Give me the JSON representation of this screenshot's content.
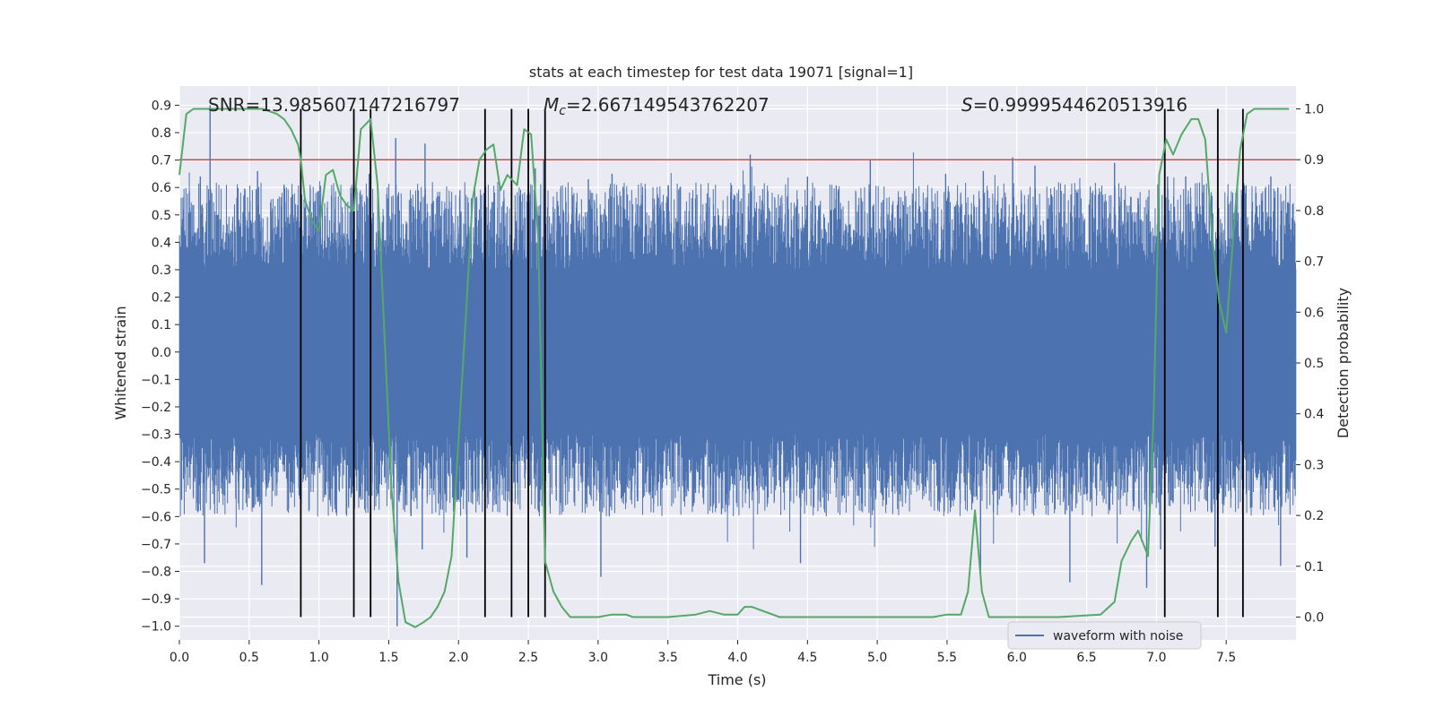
{
  "chart_data": {
    "type": "line",
    "title": "stats at each timestep for test data 19071 [signal=1]",
    "xlabel": "Time (s)",
    "ylabel": "Whitened strain",
    "y2label": "Detection probability",
    "xlim": [
      0.0,
      8.0
    ],
    "ylim": [
      -1.05,
      0.97
    ],
    "y2lim": [
      -0.045,
      1.045
    ],
    "x_ticks": [
      "0.0",
      "0.5",
      "1.0",
      "1.5",
      "2.0",
      "2.5",
      "3.0",
      "3.5",
      "4.0",
      "4.5",
      "5.0",
      "5.5",
      "6.0",
      "6.5",
      "7.0",
      "7.5"
    ],
    "y_ticks": [
      "0.9",
      "0.8",
      "0.7",
      "0.6",
      "0.5",
      "0.4",
      "0.3",
      "0.2",
      "0.1",
      "0.0",
      "−0.1",
      "−0.2",
      "−0.3",
      "−0.4",
      "−0.5",
      "−0.6",
      "−0.7",
      "−0.8",
      "−0.9",
      "−1.0"
    ],
    "y2_ticks": [
      "1.0",
      "0.9",
      "0.8",
      "0.7",
      "0.6",
      "0.5",
      "0.4",
      "0.3",
      "0.2",
      "0.1",
      "0.0"
    ],
    "grid": true,
    "legend": {
      "position": "lower-right",
      "entries": [
        "waveform with noise"
      ]
    },
    "annotations": {
      "snr": "SNR=13.985607147216797",
      "mc_symbol": "M",
      "mc_sub": "c",
      "mc_value": "=2.667149543762207",
      "s_symbol": "S",
      "s_value": "=0.9999544620513916"
    },
    "threshold": {
      "value": 0.9,
      "axis": "y2",
      "color": "#c44e52"
    },
    "vlines": [
      0.87,
      1.25,
      1.37,
      2.19,
      2.38,
      2.5,
      2.62,
      7.06,
      7.44,
      7.62
    ],
    "series": [
      {
        "name": "waveform with noise",
        "axis": "y",
        "color": "#4c72b0",
        "description": "dense noisy whitened strain, core about ±0.32, peaks to about +0.9 and -1.0",
        "peaks": [
          [
            0.22,
            0.9
          ],
          [
            0.15,
            0.64
          ],
          [
            0.56,
            0.66
          ],
          [
            0.75,
            0.61
          ],
          [
            1.09,
            0.57
          ],
          [
            1.36,
            0.65
          ],
          [
            1.76,
            0.76
          ],
          [
            1.55,
            0.78
          ],
          [
            2.01,
            0.59
          ],
          [
            2.55,
            0.67
          ],
          [
            2.61,
            0.7
          ],
          [
            2.93,
            0.63
          ],
          [
            3.1,
            0.65
          ],
          [
            3.5,
            0.56
          ],
          [
            3.98,
            0.57
          ],
          [
            4.09,
            0.72
          ],
          [
            4.5,
            0.64
          ],
          [
            4.95,
            0.7
          ],
          [
            5.49,
            0.65
          ],
          [
            5.76,
            0.66
          ],
          [
            5.97,
            0.71
          ],
          [
            6.13,
            0.68
          ],
          [
            6.7,
            0.69
          ],
          [
            7.08,
            0.64
          ],
          [
            7.21,
            0.64
          ],
          [
            7.34,
            0.61
          ],
          [
            7.57,
            0.58
          ],
          [
            7.82,
            0.64
          ],
          [
            7.87,
            0.6
          ]
        ],
        "troughs": [
          [
            0.18,
            -0.77
          ],
          [
            0.59,
            -0.85
          ],
          [
            1.56,
            -1.0
          ],
          [
            1.74,
            -0.72
          ],
          [
            2.06,
            -0.75
          ],
          [
            3.02,
            -0.82
          ],
          [
            4.45,
            -0.77
          ],
          [
            5.74,
            -0.82
          ],
          [
            6.38,
            -0.84
          ],
          [
            6.93,
            -0.86
          ],
          [
            7.03,
            -0.72
          ],
          [
            7.42,
            -0.71
          ],
          [
            7.89,
            -0.78
          ]
        ]
      },
      {
        "name": "",
        "axis": "y2",
        "color": "#55a868",
        "x": [
          0.0,
          0.05,
          0.1,
          0.2,
          0.3,
          0.4,
          0.5,
          0.6,
          0.7,
          0.75,
          0.8,
          0.85,
          0.87,
          0.9,
          0.95,
          1.0,
          1.05,
          1.1,
          1.15,
          1.2,
          1.25,
          1.3,
          1.37,
          1.42,
          1.47,
          1.52,
          1.57,
          1.62,
          1.69,
          1.75,
          1.8,
          1.85,
          1.9,
          1.95,
          2.0,
          2.05,
          2.1,
          2.15,
          2.2,
          2.25,
          2.3,
          2.35,
          2.42,
          2.47,
          2.52,
          2.57,
          2.62,
          2.68,
          2.74,
          2.8,
          2.85,
          2.9,
          2.95,
          3.0,
          3.1,
          3.2,
          3.25,
          3.3,
          3.5,
          3.7,
          3.8,
          3.9,
          4.0,
          4.05,
          4.1,
          4.3,
          4.5,
          4.8,
          5.1,
          5.3,
          5.4,
          5.5,
          5.6,
          5.65,
          5.7,
          5.75,
          5.8,
          5.86,
          5.9,
          6.0,
          6.1,
          6.3,
          6.6,
          6.7,
          6.75,
          6.82,
          6.87,
          6.94,
          6.98,
          7.02,
          7.07,
          7.12,
          7.18,
          7.25,
          7.3,
          7.35,
          7.4,
          7.45,
          7.5,
          7.55,
          7.6,
          7.65,
          7.7,
          7.75,
          7.8,
          7.85,
          7.95
        ],
        "y": [
          0.87,
          0.99,
          1.0,
          1.0,
          1.0,
          1.0,
          1.0,
          1.0,
          0.99,
          0.98,
          0.96,
          0.93,
          0.9,
          0.82,
          0.78,
          0.76,
          0.87,
          0.88,
          0.83,
          0.81,
          0.8,
          0.96,
          0.98,
          0.85,
          0.55,
          0.25,
          0.07,
          -0.01,
          -0.02,
          -0.01,
          0.0,
          0.02,
          0.05,
          0.12,
          0.35,
          0.58,
          0.82,
          0.9,
          0.92,
          0.93,
          0.84,
          0.87,
          0.85,
          0.96,
          0.95,
          0.75,
          0.11,
          0.05,
          0.02,
          0.0,
          0.0,
          0.0,
          0.0,
          0.0,
          0.005,
          0.005,
          0.0,
          0.0,
          0.0,
          0.005,
          0.012,
          0.005,
          0.005,
          0.02,
          0.02,
          0.0,
          0.0,
          0.0,
          0.0,
          0.0,
          0.0,
          0.005,
          0.005,
          0.05,
          0.21,
          0.05,
          0.0,
          0.0,
          0.0,
          0.0,
          0.0,
          0.0,
          0.005,
          0.03,
          0.11,
          0.15,
          0.17,
          0.12,
          0.4,
          0.87,
          0.94,
          0.91,
          0.95,
          0.98,
          0.98,
          0.94,
          0.75,
          0.62,
          0.56,
          0.75,
          0.92,
          0.99,
          1.0,
          1.0,
          1.0,
          1.0,
          1.0
        ]
      }
    ]
  },
  "colors": {
    "plot_bg": "#eaeaf2",
    "grid": "#ffffff",
    "waveform": "#4c72b0",
    "probability": "#55a868",
    "threshold": "#c44e52",
    "vline": "#000000"
  }
}
